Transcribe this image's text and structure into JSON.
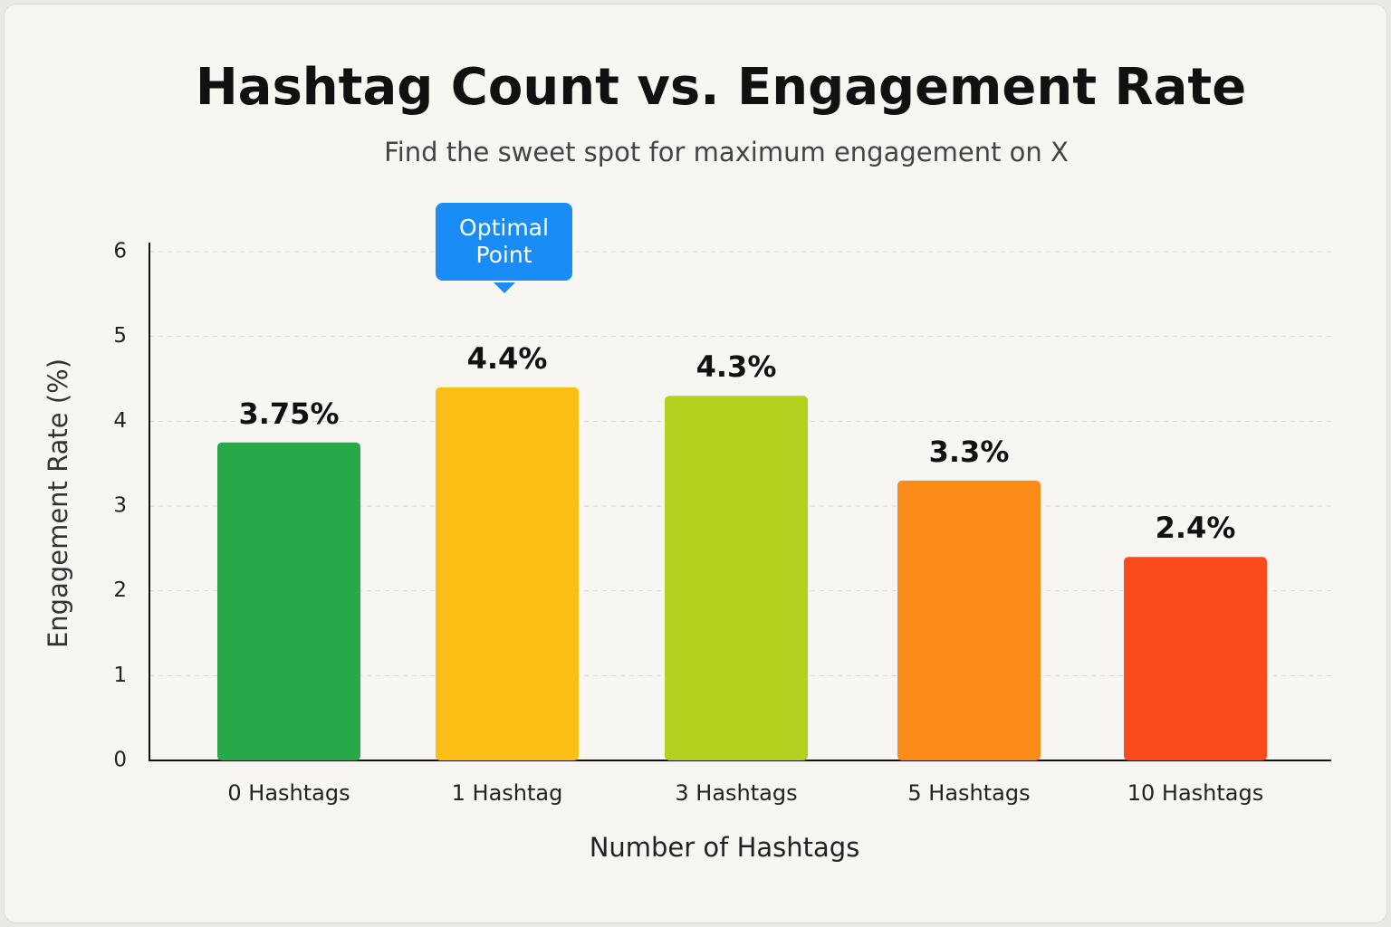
{
  "chart_data": {
    "type": "bar",
    "title": "Hashtag Count vs. Engagement Rate",
    "subtitle": "Find the sweet spot for maximum engagement on X",
    "x_label": "Number of Hashtags",
    "y_label": "Engagement Rate (%)",
    "categories": [
      "0 Hashtags",
      "1 Hashtag",
      "3 Hashtags",
      "5 Hashtags",
      "10 Hashtags"
    ],
    "values": [
      3.75,
      4.4,
      4.3,
      3.3,
      2.4
    ],
    "value_labels": [
      "3.75%",
      "4.4%",
      "4.3%",
      "3.3%",
      "2.4%"
    ],
    "colors": [
      "#27a94a",
      "#fbbf16",
      "#b5d11f",
      "#fb8c1a",
      "#fb4a1c"
    ],
    "annotation": "Optimal Point",
    "ylim": [
      0,
      6
    ],
    "yticks": [
      0,
      1,
      2,
      3,
      4,
      5,
      6
    ],
    "grid": true
  }
}
